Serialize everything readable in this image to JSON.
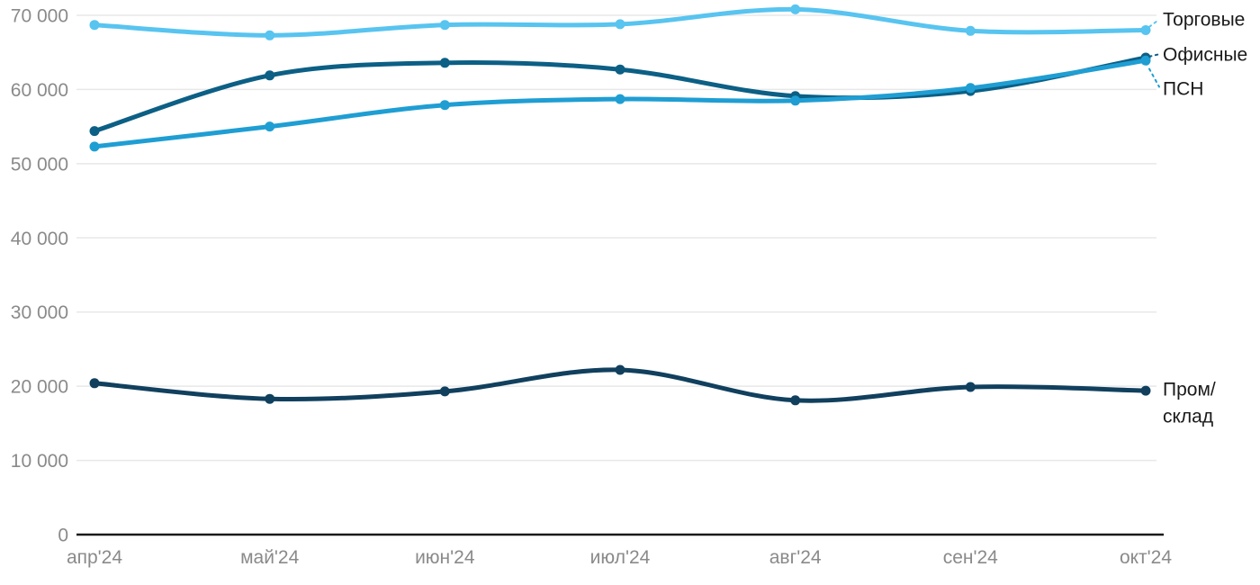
{
  "chart_data": {
    "type": "line",
    "title": "",
    "xlabel": "",
    "ylabel": "",
    "categories": [
      "апр'24",
      "май'24",
      "июн'24",
      "июл'24",
      "авг'24",
      "сен'24",
      "окт'24"
    ],
    "series": [
      {
        "name": "Торговые",
        "label_lines": [
          "Торговые"
        ],
        "color": "#58C4F0",
        "has_leader": true,
        "values": [
          68700,
          67300,
          68700,
          68800,
          70800,
          67900,
          68000
        ]
      },
      {
        "name": "Офисные",
        "label_lines": [
          "Офисные"
        ],
        "color": "#0C5F85",
        "has_leader": true,
        "values": [
          54400,
          61900,
          63600,
          62700,
          59100,
          59800,
          64300
        ]
      },
      {
        "name": "ПСН",
        "label_lines": [
          "ПСН"
        ],
        "color": "#1F9ED3",
        "has_leader": true,
        "values": [
          52300,
          55000,
          57900,
          58700,
          58500,
          60200,
          63900
        ]
      },
      {
        "name": "Пром/склад",
        "label_lines": [
          "Пром/",
          "склад"
        ],
        "color": "#11405E",
        "has_leader": false,
        "values": [
          20400,
          18300,
          19300,
          22200,
          18100,
          19900,
          19400
        ]
      }
    ],
    "ylim": [
      0,
      70000
    ],
    "yticks": [
      0,
      10000,
      20000,
      30000,
      40000,
      50000,
      60000,
      70000
    ],
    "ytick_labels": [
      "0",
      "10 000",
      "20 000",
      "30 000",
      "40 000",
      "50 000",
      "60 000",
      "70 000"
    ],
    "grid": true,
    "legend_position": "right-annotations"
  },
  "colors": {
    "background": "#FFFFFF",
    "gridline": "#E8E8E8",
    "axis_line": "#1A1A1A",
    "tick_text": "#8A8A8A",
    "annotation_text": "#1A1A1A"
  }
}
